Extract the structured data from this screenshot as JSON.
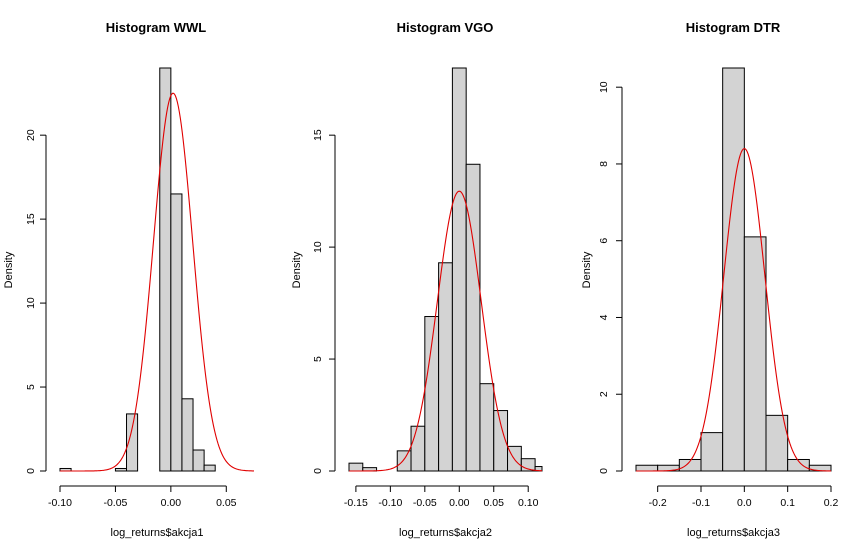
{
  "chart_data": [
    {
      "type": "bar",
      "title": "Histogram WWL",
      "xlabel": "log_returns$akcja1",
      "ylabel": "Density",
      "xlim": [
        -0.1,
        0.075
      ],
      "ylim": [
        0,
        24
      ],
      "xticks": [
        -0.1,
        -0.05,
        0.0,
        0.05
      ],
      "xtick_labels": [
        "-0.10",
        "-0.05",
        "0.00",
        "0.05"
      ],
      "yticks": [
        0,
        5,
        10,
        15,
        20
      ],
      "yticks_labels": [
        "0",
        "5",
        "10",
        "15",
        "20"
      ],
      "bin_width": 0.01,
      "bins_left": [
        -0.1,
        -0.09,
        -0.08,
        -0.07,
        -0.06,
        -0.05,
        -0.04,
        -0.03,
        -0.02,
        -0.01,
        0.0,
        0.01,
        0.02,
        0.03,
        0.04,
        0.05,
        0.06,
        0.07
      ],
      "bins": [
        {
          "x0": -0.1,
          "x1": -0.09,
          "density": 0.15
        },
        {
          "x0": -0.05,
          "x1": -0.04,
          "density": 0.15
        },
        {
          "x0": -0.04,
          "x1": -0.03,
          "density": 3.4
        },
        {
          "x0": -0.01,
          "x1": 0.0,
          "density": 24.0
        },
        {
          "x0": 0.0,
          "x1": 0.01,
          "density": 16.5
        },
        {
          "x0": 0.01,
          "x1": 0.02,
          "density": 4.3
        },
        {
          "x0": 0.02,
          "x1": 0.03,
          "density": 1.25
        },
        {
          "x0": 0.03,
          "x1": 0.04,
          "density": 0.35
        }
      ],
      "normal_curve": {
        "mean": 0.002,
        "sd": 0.0177,
        "peak": 22.5
      },
      "grid": false
    },
    {
      "type": "bar",
      "title": "Histogram VGO",
      "xlabel": "log_returns$akcja2",
      "ylabel": "Density",
      "xlim": [
        -0.16,
        0.12
      ],
      "ylim": [
        0,
        18
      ],
      "xticks": [
        -0.15,
        -0.1,
        -0.05,
        0.0,
        0.05,
        0.1
      ],
      "xtick_labels": [
        "-0.15",
        "-0.10",
        "-0.05",
        "0.00",
        "0.05",
        "0.10"
      ],
      "yticks": [
        0,
        5,
        10,
        15
      ],
      "ytick_labels": [
        "0",
        "5",
        "10",
        "15"
      ],
      "bins": [
        {
          "x0": -0.16,
          "x1": -0.14,
          "density": 0.35
        },
        {
          "x0": -0.14,
          "x1": -0.12,
          "density": 0.15
        },
        {
          "x0": -0.09,
          "x1": -0.07,
          "density": 0.9
        },
        {
          "x0": -0.07,
          "x1": -0.05,
          "density": 2.0
        },
        {
          "x0": -0.05,
          "x1": -0.03,
          "density": 6.9
        },
        {
          "x0": -0.03,
          "x1": -0.01,
          "density": 9.3
        },
        {
          "x0": -0.01,
          "x1": 0.01,
          "density": 18.0
        },
        {
          "x0": 0.01,
          "x1": 0.03,
          "density": 13.7
        },
        {
          "x0": 0.03,
          "x1": 0.05,
          "density": 3.9
        },
        {
          "x0": 0.05,
          "x1": 0.07,
          "density": 2.7
        },
        {
          "x0": 0.07,
          "x1": 0.09,
          "density": 1.1
        },
        {
          "x0": 0.09,
          "x1": 0.11,
          "density": 0.55
        },
        {
          "x0": 0.11,
          "x1": 0.12,
          "density": 0.2
        }
      ],
      "normal_curve": {
        "mean": 0.0,
        "sd": 0.0318,
        "peak": 12.5
      },
      "grid": false
    },
    {
      "type": "bar",
      "title": "Histogram DTR",
      "xlabel": "log_returns$akcja3",
      "ylabel": "Density",
      "xlim": [
        -0.25,
        0.2
      ],
      "ylim": [
        0,
        10.5
      ],
      "xticks": [
        -0.2,
        -0.1,
        0.0,
        0.1,
        0.2
      ],
      "xtick_labels": [
        "-0.2",
        "-0.1",
        "0.0",
        "0.1",
        "0.2"
      ],
      "yticks": [
        0,
        2,
        4,
        6,
        8,
        10
      ],
      "ytick_labels": [
        "0",
        "2",
        "4",
        "6",
        "8",
        "10"
      ],
      "bins": [
        {
          "x0": -0.25,
          "x1": -0.2,
          "density": 0.15
        },
        {
          "x0": -0.2,
          "x1": -0.15,
          "density": 0.15
        },
        {
          "x0": -0.15,
          "x1": -0.1,
          "density": 0.3
        },
        {
          "x0": -0.1,
          "x1": -0.05,
          "density": 1.0
        },
        {
          "x0": -0.05,
          "x1": 0.0,
          "density": 10.5
        },
        {
          "x0": 0.0,
          "x1": 0.05,
          "density": 6.1
        },
        {
          "x0": 0.05,
          "x1": 0.1,
          "density": 1.45
        },
        {
          "x0": 0.1,
          "x1": 0.15,
          "density": 0.3
        },
        {
          "x0": 0.15,
          "x1": 0.2,
          "density": 0.15
        }
      ],
      "normal_curve": {
        "mean": 0.0,
        "sd": 0.0474,
        "peak": 8.4
      },
      "grid": false
    }
  ]
}
